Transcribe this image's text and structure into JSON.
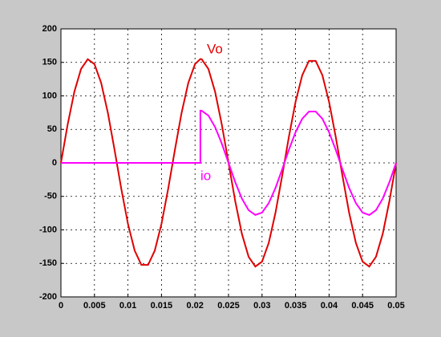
{
  "chart_data": {
    "type": "line",
    "x": [
      0,
      0.001,
      0.002,
      0.003,
      0.004,
      0.005,
      0.006,
      0.007,
      0.008,
      0.009,
      0.01,
      0.011,
      0.012,
      0.013,
      0.014,
      0.015,
      0.016,
      0.017,
      0.018,
      0.019,
      0.02,
      0.0208,
      0.0208,
      0.021,
      0.022,
      0.023,
      0.024,
      0.025,
      0.026,
      0.027,
      0.028,
      0.029,
      0.03,
      0.031,
      0.032,
      0.033,
      0.034,
      0.035,
      0.036,
      0.037,
      0.038,
      0.039,
      0.04,
      0.041,
      0.042,
      0.043,
      0.044,
      0.045,
      0.046,
      0.047,
      0.048,
      0.049,
      0.05
    ],
    "series": [
      {
        "name": "Vo",
        "color": "#e00000",
        "values": [
          0,
          57.1,
          106.1,
          140.2,
          154.7,
          147.4,
          119.4,
          74.7,
          19.4,
          -38.5,
          -91.1,
          -130.9,
          -152.3,
          -152.3,
          -130.9,
          -91.1,
          -38.5,
          19.4,
          74.7,
          119.4,
          147.4,
          155,
          155,
          154.7,
          140.2,
          106.1,
          57.1,
          0,
          -57.1,
          -106.1,
          -140.2,
          -154.7,
          -147.4,
          -119.4,
          -74.7,
          -19.4,
          38.5,
          91.1,
          130.9,
          152.3,
          152.3,
          130.9,
          91.1,
          38.5,
          -19.4,
          -74.7,
          -119.4,
          -147.4,
          -154.7,
          -140.2,
          -106.1,
          -57.1,
          0
        ]
      },
      {
        "name": "io",
        "color": "#ff00ff",
        "values": [
          0,
          0,
          0,
          0,
          0,
          0,
          0,
          0,
          0,
          0,
          0,
          0,
          0,
          0,
          0,
          0,
          0,
          0,
          0,
          0,
          0,
          0,
          78,
          77.8,
          70.6,
          53.4,
          28.7,
          0,
          -28.7,
          -53.4,
          -70.6,
          -77.7,
          -74.2,
          -60.1,
          -37.6,
          -9.8,
          19.4,
          45.8,
          65.9,
          76.6,
          76.6,
          65.9,
          45.8,
          19.4,
          -9.8,
          -37.6,
          -60.1,
          -74.2,
          -77.8,
          -70.6,
          -53.4,
          -28.7,
          0
        ]
      }
    ],
    "xlim": [
      0,
      0.05
    ],
    "xticks": [
      0,
      0.005,
      0.01,
      0.015,
      0.02,
      0.025,
      0.03,
      0.035,
      0.04,
      0.045,
      0.05
    ],
    "ylim": [
      -200,
      200
    ],
    "yticks": [
      -200,
      -150,
      -100,
      -50,
      0,
      50,
      100,
      150,
      200
    ],
    "grid": true
  }
}
